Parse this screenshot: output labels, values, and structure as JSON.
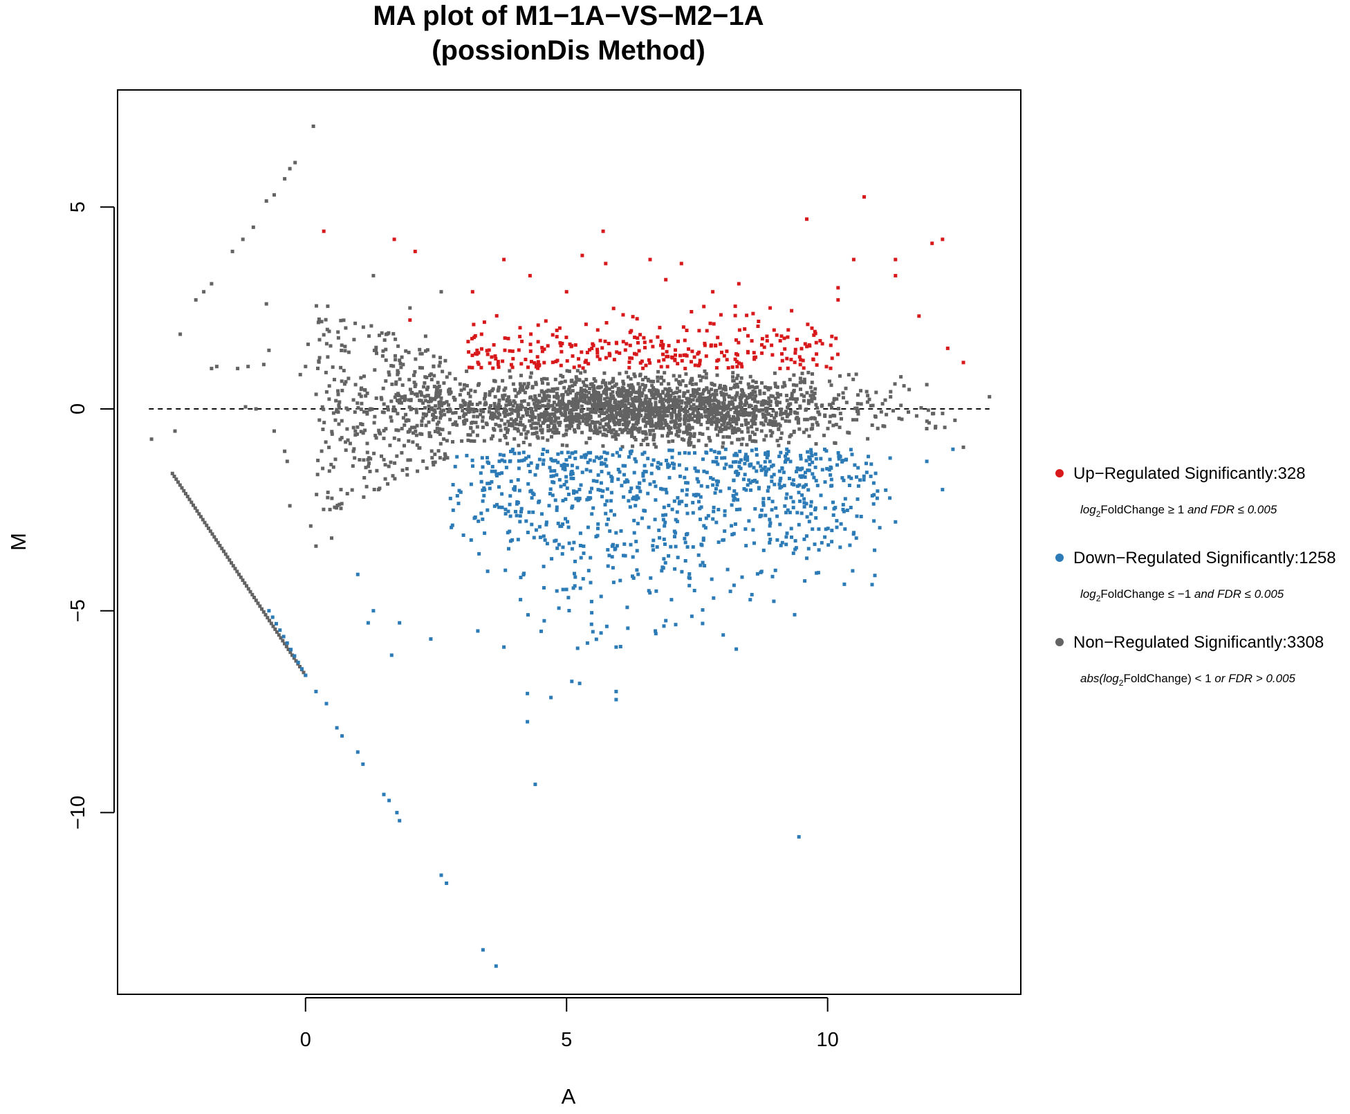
{
  "chart_data": {
    "type": "scatter",
    "title": [
      "MA plot of M1−1A−VS−M2−1A",
      "(possionDis Method)"
    ],
    "xlabel": "A",
    "ylabel": "M",
    "xlim": [
      -3.6,
      13.7
    ],
    "ylim": [
      -14.5,
      7.9
    ],
    "xticks": [
      0,
      5,
      10
    ],
    "yticks": [
      -10,
      -5,
      0,
      5
    ],
    "xtick_labels": [
      "0",
      "5",
      "10"
    ],
    "ytick_labels": [
      "−10",
      "−5",
      "0",
      "5"
    ],
    "reference_line": {
      "y": 0,
      "x_from": -3.0,
      "x_to": 13.1,
      "style": "dashed"
    },
    "grid": false,
    "legend_position": "right",
    "series": [
      {
        "name": "Up−Regulated Significantly:328",
        "color": "#d7191c",
        "condition": {
          "pre": "log",
          "sub": "2",
          "mid": "FoldChange ≥ 1",
          "post": "and FDR ≤ 0.005"
        },
        "count": 328,
        "points": [
          [
            0.35,
            4.4
          ],
          [
            1.7,
            4.2
          ],
          [
            2.1,
            3.9
          ],
          [
            3.8,
            3.7
          ],
          [
            4.3,
            3.3
          ],
          [
            5.3,
            3.8
          ],
          [
            5.7,
            4.4
          ],
          [
            5.75,
            3.6
          ],
          [
            6.6,
            3.7
          ],
          [
            7.2,
            3.6
          ],
          [
            8.3,
            3.1
          ],
          [
            9.6,
            4.7
          ],
          [
            10.7,
            5.25
          ],
          [
            10.5,
            3.7
          ],
          [
            11.3,
            3.7
          ],
          [
            11.3,
            3.3
          ],
          [
            12.0,
            4.1
          ],
          [
            12.2,
            4.2
          ],
          [
            10.2,
            3.0
          ],
          [
            10.2,
            2.7
          ],
          [
            11.75,
            2.3
          ],
          [
            12.3,
            1.5
          ],
          [
            12.6,
            1.15
          ],
          [
            2.0,
            2.2
          ],
          [
            3.2,
            2.9
          ],
          [
            6.9,
            3.2
          ],
          [
            7.8,
            2.9
          ],
          [
            8.9,
            2.5
          ],
          [
            9.7,
            2.0
          ],
          [
            5.0,
            2.9
          ]
        ]
      },
      {
        "name": "Down−Regulated Significantly:1258",
        "color": "#2c7bb6",
        "condition": {
          "pre": "log",
          "sub": "2",
          "mid": "FoldChange ≤ −1",
          "post": "and FDR ≤ 0.005"
        },
        "count": 1258,
        "points": [
          [
            1.65,
            -6.1
          ],
          [
            2.4,
            -5.7
          ],
          [
            3.3,
            -5.5
          ],
          [
            3.8,
            -5.9
          ],
          [
            4.25,
            -7.05
          ],
          [
            4.25,
            -7.75
          ],
          [
            4.7,
            -7.15
          ],
          [
            4.4,
            -9.3
          ],
          [
            5.1,
            -6.75
          ],
          [
            5.25,
            -6.8
          ],
          [
            5.95,
            -7.0
          ],
          [
            5.95,
            -7.2
          ],
          [
            5.95,
            -5.9
          ],
          [
            5.4,
            -5.8
          ],
          [
            6.7,
            -5.5
          ],
          [
            7.45,
            -4.5
          ],
          [
            8.0,
            -5.6
          ],
          [
            8.25,
            -5.95
          ],
          [
            8.55,
            -4.6
          ],
          [
            9.0,
            -4.0
          ],
          [
            9.6,
            -3.7
          ],
          [
            9.45,
            -10.6
          ],
          [
            10.55,
            -3.2
          ],
          [
            10.9,
            -3.5
          ],
          [
            11.3,
            -2.8
          ],
          [
            11.9,
            -1.3
          ],
          [
            12.2,
            -2.0
          ],
          [
            12.4,
            -1.0
          ],
          [
            2.6,
            -11.55
          ],
          [
            2.7,
            -11.75
          ],
          [
            3.4,
            -13.4
          ],
          [
            3.65,
            -13.8
          ],
          [
            1.5,
            -9.55
          ],
          [
            1.6,
            -9.7
          ],
          [
            1.75,
            -10.0
          ],
          [
            1.8,
            -10.2
          ],
          [
            1.1,
            -8.8
          ],
          [
            1.0,
            -8.5
          ],
          [
            0.7,
            -8.1
          ],
          [
            0.6,
            -7.9
          ],
          [
            0.4,
            -7.3
          ],
          [
            0.2,
            -7.0
          ],
          [
            1.0,
            -4.1
          ],
          [
            1.2,
            -5.3
          ],
          [
            1.3,
            -5.0
          ],
          [
            1.8,
            -5.3
          ]
        ]
      },
      {
        "name": "Non−Regulated Significantly:3308",
        "color": "#636363",
        "condition": {
          "pre": "abs(log",
          "sub": "2",
          "mid": "FoldChange) < 1",
          "post": "or FDR > 0.005"
        },
        "count": 3308,
        "points": [
          [
            0.15,
            7.0
          ],
          [
            -0.2,
            6.1
          ],
          [
            -0.3,
            5.95
          ],
          [
            -0.4,
            5.7
          ],
          [
            -0.6,
            5.3
          ],
          [
            -0.75,
            5.15
          ],
          [
            -1.0,
            4.5
          ],
          [
            -1.2,
            4.2
          ],
          [
            -1.4,
            3.9
          ],
          [
            -1.8,
            3.1
          ],
          [
            -1.95,
            2.9
          ],
          [
            -2.1,
            2.7
          ],
          [
            -2.4,
            1.85
          ],
          [
            -2.5,
            -0.55
          ],
          [
            -2.95,
            -0.75
          ],
          [
            -1.7,
            1.05
          ],
          [
            -1.8,
            1.0
          ],
          [
            -1.3,
            1.0
          ],
          [
            -1.1,
            1.05
          ],
          [
            -0.8,
            1.1
          ],
          [
            -1.15,
            0.05
          ],
          [
            -0.95,
            0.0
          ],
          [
            -0.6,
            -0.55
          ],
          [
            -0.4,
            -1.05
          ],
          [
            -0.35,
            -1.3
          ],
          [
            -0.3,
            -2.4
          ],
          [
            -0.1,
            0.85
          ],
          [
            0.0,
            1.05
          ],
          [
            0.05,
            1.6
          ],
          [
            -0.75,
            2.6
          ],
          [
            -0.7,
            1.45
          ],
          [
            1.3,
            3.3
          ],
          [
            2.0,
            2.5
          ],
          [
            2.3,
            1.8
          ],
          [
            2.6,
            2.9
          ],
          [
            13.1,
            0.3
          ],
          [
            12.6,
            -0.95
          ],
          [
            11.9,
            0.6
          ],
          [
            0.1,
            -2.9
          ],
          [
            0.2,
            -3.4
          ],
          [
            0.5,
            -3.2
          ],
          [
            0.8,
            -2.1
          ]
        ],
        "fan_lower": [
          [
            -2.55,
            -1.6
          ],
          [
            0.0,
            -6.6
          ]
        ]
      }
    ]
  }
}
